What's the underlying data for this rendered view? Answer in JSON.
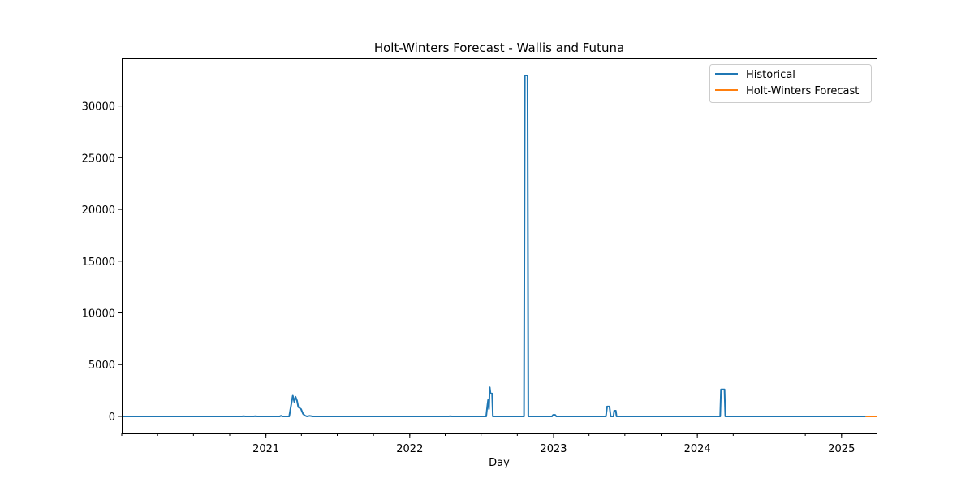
{
  "chart_data": {
    "type": "line",
    "title": "Holt-Winters Forecast - Wallis and Futuna",
    "xlabel": "Day",
    "ylabel": "",
    "xlim": [
      "2020-01-01",
      "2025-03-31"
    ],
    "ylim": [
      -1650,
      34600
    ],
    "x_ticks": [
      "2021",
      "2022",
      "2023",
      "2024",
      "2025"
    ],
    "y_ticks": [
      0,
      5000,
      10000,
      15000,
      20000,
      25000,
      30000
    ],
    "grid": false,
    "legend_position": "top-right",
    "colors": {
      "historical": "#1f77b4",
      "forecast": "#ff7f0e"
    },
    "series": [
      {
        "name": "Historical",
        "color": "#1f77b4",
        "points": [
          [
            "2020-01-01",
            0
          ],
          [
            "2020-11-01",
            0
          ],
          [
            "2020-11-05",
            20
          ],
          [
            "2020-11-10",
            0
          ],
          [
            "2020-12-01",
            0
          ],
          [
            "2020-12-05",
            15
          ],
          [
            "2020-12-10",
            0
          ],
          [
            "2021-02-05",
            0
          ],
          [
            "2021-02-08",
            60
          ],
          [
            "2021-02-12",
            0
          ],
          [
            "2021-03-01",
            0
          ],
          [
            "2021-03-06",
            1100
          ],
          [
            "2021-03-10",
            2000
          ],
          [
            "2021-03-14",
            1400
          ],
          [
            "2021-03-17",
            1900
          ],
          [
            "2021-03-21",
            1500
          ],
          [
            "2021-03-24",
            900
          ],
          [
            "2021-03-31",
            700
          ],
          [
            "2021-04-05",
            250
          ],
          [
            "2021-04-10",
            80
          ],
          [
            "2021-04-15",
            0
          ],
          [
            "2021-04-22",
            50
          ],
          [
            "2021-04-30",
            0
          ],
          [
            "2022-04-10",
            0
          ],
          [
            "2022-04-14",
            15
          ],
          [
            "2022-04-18",
            0
          ],
          [
            "2022-07-14",
            0
          ],
          [
            "2022-07-17",
            1000
          ],
          [
            "2022-07-19",
            1600
          ],
          [
            "2022-07-21",
            700
          ],
          [
            "2022-07-23",
            2800
          ],
          [
            "2022-07-25",
            2200
          ],
          [
            "2022-07-29",
            2200
          ],
          [
            "2022-07-31",
            0
          ],
          [
            "2022-10-18",
            0
          ],
          [
            "2022-10-20",
            32950
          ],
          [
            "2022-10-27",
            32950
          ],
          [
            "2022-10-29",
            0
          ],
          [
            "2022-12-28",
            0
          ],
          [
            "2022-12-31",
            150
          ],
          [
            "2023-01-05",
            150
          ],
          [
            "2023-01-08",
            0
          ],
          [
            "2023-05-14",
            0
          ],
          [
            "2023-05-17",
            950
          ],
          [
            "2023-05-23",
            950
          ],
          [
            "2023-05-26",
            0
          ],
          [
            "2023-06-02",
            0
          ],
          [
            "2023-06-04",
            550
          ],
          [
            "2023-06-08",
            550
          ],
          [
            "2023-06-10",
            0
          ],
          [
            "2024-02-28",
            0
          ],
          [
            "2024-03-01",
            2600
          ],
          [
            "2024-03-10",
            2600
          ],
          [
            "2024-03-12",
            0
          ],
          [
            "2025-03-03",
            0
          ]
        ]
      },
      {
        "name": "Holt-Winters Forecast",
        "color": "#ff7f0e",
        "points": [
          [
            "2025-03-03",
            0
          ],
          [
            "2025-03-31",
            0
          ]
        ]
      }
    ]
  }
}
